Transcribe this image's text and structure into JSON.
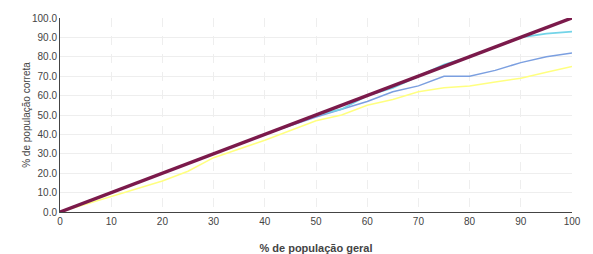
{
  "chart_data": {
    "type": "line",
    "xlabel": "% de população geral",
    "ylabel": "% de população correta",
    "xlim": [
      0,
      100
    ],
    "ylim": [
      0,
      100
    ],
    "xticks": [
      0,
      10,
      20,
      30,
      40,
      50,
      60,
      70,
      80,
      90,
      100
    ],
    "yticks": [
      {
        "value": 0.0,
        "label": "0.0"
      },
      {
        "value": 10.0,
        "label": "10.0"
      },
      {
        "value": 20.0,
        "label": "20.0"
      },
      {
        "value": 30.0,
        "label": "30.0"
      },
      {
        "value": 40.0,
        "label": "40.0"
      },
      {
        "value": 50.0,
        "label": "50.0"
      },
      {
        "value": 60.0,
        "label": "60.0"
      },
      {
        "value": 70.0,
        "label": "70.0"
      },
      {
        "value": 80.0,
        "label": "80.0"
      },
      {
        "value": 90.0,
        "label": "90.0"
      },
      {
        "value": 100.0,
        "label": "100.0"
      }
    ],
    "grid": true,
    "series": [
      {
        "color": "#ffff80",
        "x": [
          0,
          10,
          20,
          25,
          30,
          40,
          50,
          55,
          60,
          65,
          70,
          75,
          80,
          85,
          90,
          95,
          100
        ],
        "values": [
          0,
          8,
          16,
          21,
          28,
          37,
          47,
          50,
          55,
          58,
          62,
          64,
          65,
          67,
          69,
          72,
          75
        ]
      },
      {
        "color": "#7b9fe0",
        "x": [
          0,
          10,
          20,
          30,
          40,
          50,
          55,
          60,
          65,
          70,
          75,
          80,
          85,
          90,
          95,
          100
        ],
        "values": [
          0,
          10,
          20,
          30,
          40,
          49,
          53,
          57,
          62,
          65,
          70,
          70,
          73,
          77,
          80,
          82
        ]
      },
      {
        "color": "#73d4e8",
        "x": [
          0,
          10,
          20,
          30,
          40,
          50,
          55,
          60,
          65,
          70,
          75,
          80,
          85,
          90,
          95,
          100
        ],
        "values": [
          0,
          10,
          20,
          30,
          40,
          50,
          53,
          60,
          64,
          70,
          76,
          80,
          85,
          90,
          92,
          93
        ]
      },
      {
        "color": "#7b1a4b",
        "x": [
          0,
          100
        ],
        "values": [
          0,
          100
        ]
      }
    ]
  }
}
